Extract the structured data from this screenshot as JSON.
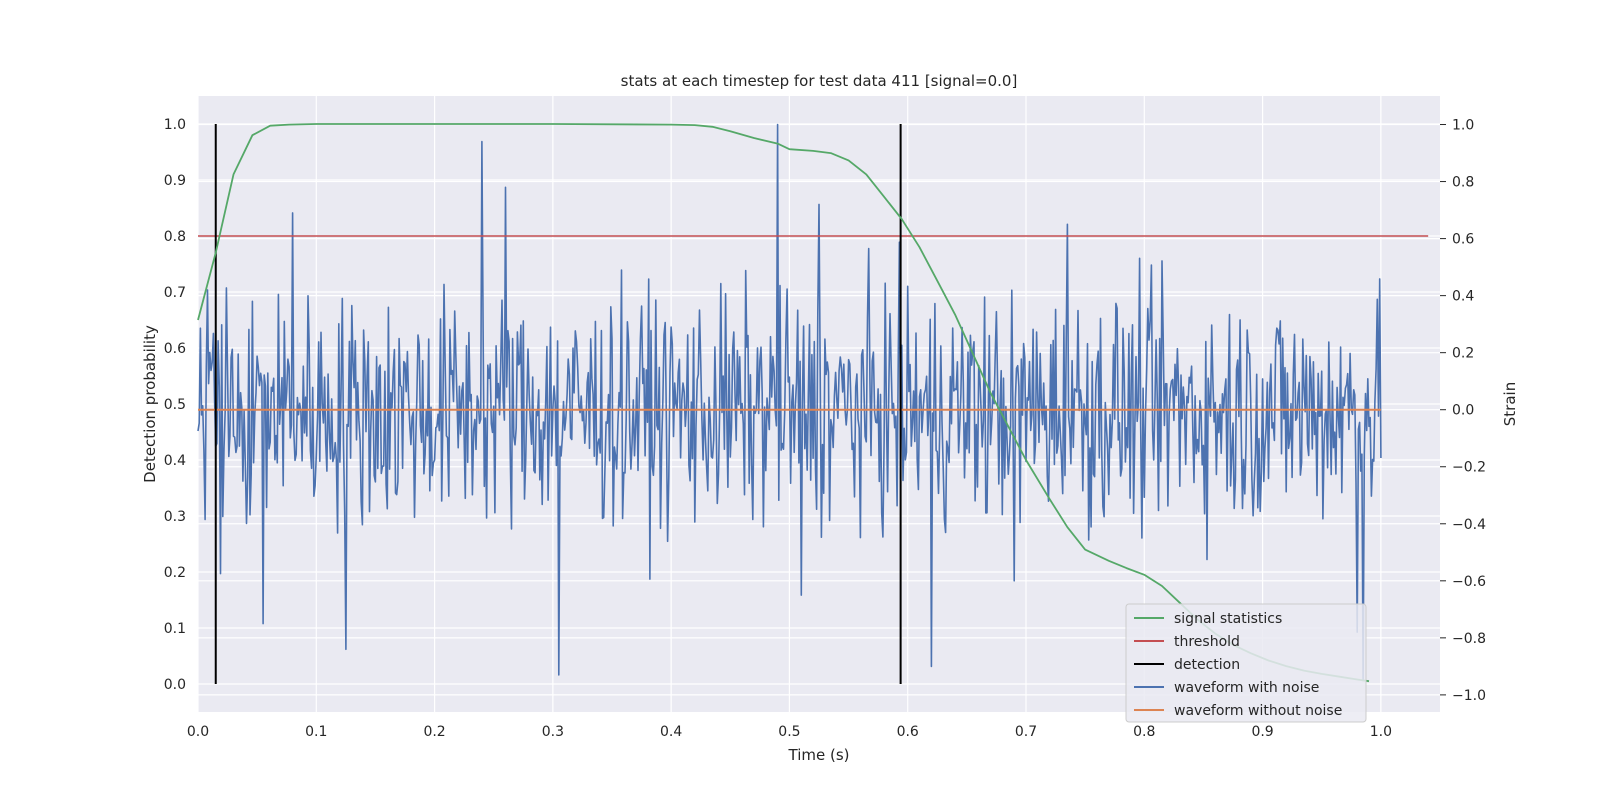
{
  "chart_data": {
    "type": "line",
    "title": "stats at each timestep for test data 411 [signal=0.0]",
    "xlabel": "Time (s)",
    "ylabel": "Detection probability",
    "y2label": "Strain",
    "xlim": [
      0.0,
      1.05
    ],
    "ylim": [
      -0.05,
      1.05
    ],
    "y2lim": [
      -1.06,
      1.1
    ],
    "x_ticks": [
      "0.0",
      "0.1",
      "0.2",
      "0.3",
      "0.4",
      "0.5",
      "0.6",
      "0.7",
      "0.8",
      "0.9",
      "1.0"
    ],
    "y_ticks": [
      "0.0",
      "0.1",
      "0.2",
      "0.3",
      "0.4",
      "0.5",
      "0.6",
      "0.7",
      "0.8",
      "0.9",
      "1.0"
    ],
    "y2_ticks": [
      "−1.0",
      "−0.8",
      "−0.6",
      "−0.4",
      "−0.2",
      "0.0",
      "0.2",
      "0.4",
      "0.6",
      "0.8",
      "1.0"
    ],
    "grid": true,
    "legend_position": "lower-right",
    "colors": {
      "signal_statistics": "#55a868",
      "threshold": "#c44e52",
      "detection": "#000000",
      "waveform_with_noise": "#4c72b0",
      "waveform_without_noise": "#dd8452",
      "background": "#eaeaf2",
      "grid": "#ffffff"
    },
    "series": [
      {
        "name": "signal statistics",
        "axis": "left",
        "x": [
          0.0,
          0.015,
          0.03,
          0.046,
          0.061,
          0.077,
          0.1,
          0.2,
          0.3,
          0.4,
          0.42,
          0.435,
          0.45,
          0.47,
          0.49,
          0.5,
          0.52,
          0.535,
          0.55,
          0.565,
          0.58,
          0.595,
          0.61,
          0.625,
          0.64,
          0.655,
          0.67,
          0.685,
          0.7,
          0.72,
          0.735,
          0.75,
          0.77,
          0.785,
          0.8,
          0.815,
          0.83,
          0.845,
          0.86,
          0.875,
          0.89,
          0.905,
          0.92,
          0.935,
          0.95,
          0.965,
          0.98,
          0.99
        ],
        "y": [
          0.65,
          0.77,
          0.91,
          0.98,
          0.997,
          0.999,
          1.0,
          1.0,
          1.0,
          0.999,
          0.998,
          0.995,
          0.987,
          0.975,
          0.965,
          0.955,
          0.952,
          0.948,
          0.935,
          0.91,
          0.87,
          0.83,
          0.78,
          0.72,
          0.66,
          0.59,
          0.52,
          0.46,
          0.4,
          0.33,
          0.28,
          0.24,
          0.22,
          0.207,
          0.195,
          0.175,
          0.145,
          0.115,
          0.09,
          0.07,
          0.055,
          0.042,
          0.032,
          0.024,
          0.018,
          0.013,
          0.008,
          0.005
        ]
      },
      {
        "name": "threshold",
        "axis": "left",
        "x": [
          0.0,
          1.04
        ],
        "y": [
          0.8,
          0.8
        ]
      },
      {
        "name": "waveform with noise",
        "axis": "right",
        "x_range": [
          0.0,
          1.0
        ],
        "peaks": [
          {
            "x": 0.008,
            "y": 0.42
          },
          {
            "x": 0.046,
            "y": 0.38
          },
          {
            "x": 0.055,
            "y": -0.75
          },
          {
            "x": 0.08,
            "y": 0.69
          },
          {
            "x": 0.125,
            "y": -0.84
          },
          {
            "x": 0.24,
            "y": 0.94
          },
          {
            "x": 0.26,
            "y": 0.78
          },
          {
            "x": 0.305,
            "y": -0.93
          },
          {
            "x": 0.49,
            "y": 1.0
          },
          {
            "x": 0.51,
            "y": -0.65
          },
          {
            "x": 0.525,
            "y": 0.72
          },
          {
            "x": 0.62,
            "y": -0.9
          },
          {
            "x": 0.69,
            "y": -0.6
          },
          {
            "x": 0.735,
            "y": 0.65
          },
          {
            "x": 0.98,
            "y": -0.78
          },
          {
            "x": 0.985,
            "y": -0.95
          }
        ]
      },
      {
        "name": "waveform without noise",
        "axis": "right",
        "x": [
          0.0,
          1.0
        ],
        "y": [
          0.0,
          0.0
        ]
      }
    ],
    "detections": [
      0.015,
      0.594
    ],
    "detection_range": [
      0.0,
      1.0
    ]
  },
  "legend": {
    "items": [
      {
        "label": "signal statistics",
        "color": "#55a868"
      },
      {
        "label": "threshold",
        "color": "#c44e52"
      },
      {
        "label": "detection",
        "color": "#000000"
      },
      {
        "label": "waveform with noise",
        "color": "#4c72b0"
      },
      {
        "label": "waveform without noise",
        "color": "#dd8452"
      }
    ]
  }
}
